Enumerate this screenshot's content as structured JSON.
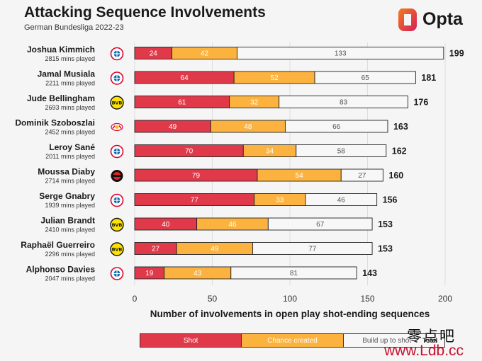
{
  "header": {
    "title": "Attacking Sequence Involvements",
    "subtitle": "German Bundesliga 2022-23",
    "brand": "Opta"
  },
  "chart_data": {
    "type": "bar",
    "orientation": "horizontal",
    "stacked": true,
    "xlabel": "Number of involvements in open play shot-ending sequences",
    "xlim": [
      0,
      200
    ],
    "xticks": [
      0,
      50,
      100,
      150,
      200
    ],
    "grid": true,
    "legend_position": "bottom",
    "categories": [
      "Joshua Kimmich",
      "Jamal Musiala",
      "Jude Bellingham",
      "Dominik Szoboszlai",
      "Leroy Sané",
      "Moussa Diaby",
      "Serge Gnabry",
      "Julian Brandt",
      "Raphaël Guerreiro",
      "Alphonso Davies"
    ],
    "minutes": [
      "2815 mins played",
      "2211 mins played",
      "2693 mins played",
      "2452 mins played",
      "2011 mins played",
      "2714 mins played",
      "1939 mins played",
      "2410 mins played",
      "2296 mins played",
      "2047 mins played"
    ],
    "clubs": [
      "bayern",
      "bayern",
      "bvb",
      "leipzig",
      "bayern",
      "leverkusen",
      "bayern",
      "bvb",
      "bvb",
      "bayern"
    ],
    "series": [
      {
        "name": "Shot",
        "color": "#e03a4a",
        "values": [
          24,
          64,
          61,
          49,
          70,
          79,
          77,
          40,
          27,
          19
        ]
      },
      {
        "name": "Chance created",
        "color": "#fbb23e",
        "values": [
          42,
          52,
          32,
          48,
          34,
          54,
          33,
          46,
          49,
          43
        ]
      },
      {
        "name": "Build up to shot",
        "color": "#f7f7f7",
        "values": [
          133,
          65,
          83,
          66,
          58,
          27,
          46,
          67,
          77,
          81
        ]
      }
    ],
    "totals": [
      199,
      181,
      176,
      163,
      162,
      160,
      156,
      153,
      153,
      143
    ],
    "total_label": "Total"
  },
  "watermark": {
    "cn": "零点吧",
    "url": "www.Ldb.cc"
  },
  "colors": {
    "bayern": "#dc052d",
    "bvb": "#fde100",
    "leipzig": "#dd0741",
    "leverkusen": "#e32221",
    "opta_orange": "#f47b20",
    "opta_pink": "#d41f5a"
  }
}
